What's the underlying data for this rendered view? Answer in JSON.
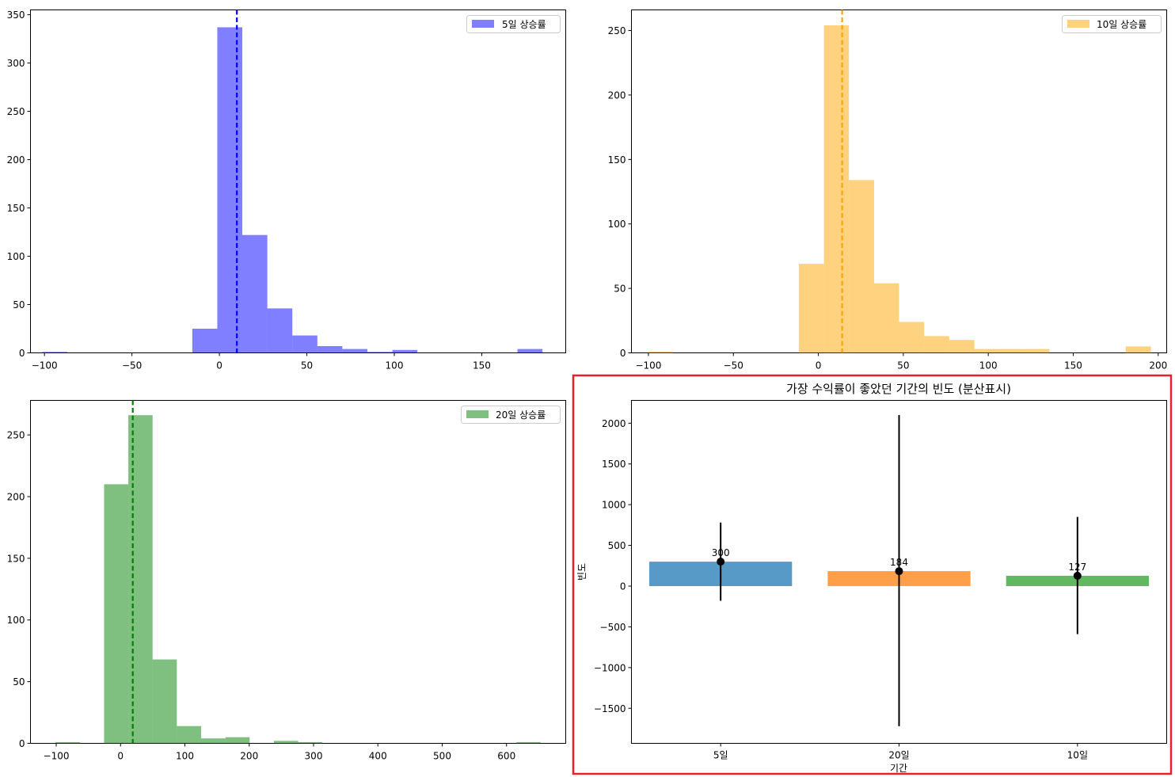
{
  "chart_data": [
    {
      "type": "bar",
      "subtype": "histogram",
      "legend": "5일 상승률",
      "legend_position": "top-right",
      "color": "#0000ff",
      "opacity": 0.5,
      "mean_line": {
        "value": 10,
        "color": "#0000ff"
      },
      "xlim": [
        -108,
        198
      ],
      "ylim": [
        0,
        355
      ],
      "xticks": [
        -100,
        -50,
        0,
        50,
        100,
        150
      ],
      "xtick_labels": [
        "−100",
        "−50",
        "0",
        "50",
        "100",
        "150"
      ],
      "yticks": [
        0,
        50,
        100,
        150,
        200,
        250,
        300,
        350
      ],
      "bins": [
        {
          "x0": -101.3,
          "x1": -87.0,
          "count": 1
        },
        {
          "x0": -15.5,
          "x1": -1.2,
          "count": 25
        },
        {
          "x0": -1.2,
          "x1": 13.1,
          "count": 337
        },
        {
          "x0": 13.1,
          "x1": 27.4,
          "count": 122
        },
        {
          "x0": 27.4,
          "x1": 41.7,
          "count": 46
        },
        {
          "x0": 41.7,
          "x1": 56.0,
          "count": 18
        },
        {
          "x0": 56.0,
          "x1": 70.3,
          "count": 7
        },
        {
          "x0": 70.3,
          "x1": 84.6,
          "count": 4
        },
        {
          "x0": 84.6,
          "x1": 98.9,
          "count": 1
        },
        {
          "x0": 98.9,
          "x1": 113.2,
          "count": 3
        },
        {
          "x0": 170.4,
          "x1": 184.7,
          "count": 4
        }
      ]
    },
    {
      "type": "bar",
      "subtype": "histogram",
      "legend": "10일 상승률",
      "legend_position": "top-right",
      "color": "#ffa500",
      "opacity": 0.5,
      "mean_line": {
        "value": 14,
        "color": "#ffa500"
      },
      "xlim": [
        -110,
        205
      ],
      "ylim": [
        0,
        266
      ],
      "xticks": [
        -100,
        -50,
        0,
        50,
        100,
        150,
        200
      ],
      "xtick_labels": [
        "−100",
        "−50",
        "0",
        "50",
        "100",
        "150",
        "200"
      ],
      "yticks": [
        0,
        50,
        100,
        150,
        200,
        250
      ],
      "bins": [
        {
          "x0": -100.0,
          "x1": -85.2,
          "count": 1
        },
        {
          "x0": -11.5,
          "x1": 3.3,
          "count": 69
        },
        {
          "x0": 3.3,
          "x1": 18.0,
          "count": 254
        },
        {
          "x0": 18.0,
          "x1": 32.8,
          "count": 134
        },
        {
          "x0": 32.8,
          "x1": 47.5,
          "count": 54
        },
        {
          "x0": 47.5,
          "x1": 62.3,
          "count": 24
        },
        {
          "x0": 62.3,
          "x1": 77.0,
          "count": 13
        },
        {
          "x0": 77.0,
          "x1": 91.8,
          "count": 10
        },
        {
          "x0": 91.8,
          "x1": 106.5,
          "count": 3
        },
        {
          "x0": 106.5,
          "x1": 121.3,
          "count": 3
        },
        {
          "x0": 121.3,
          "x1": 136.0,
          "count": 3
        },
        {
          "x0": 180.9,
          "x1": 195.7,
          "count": 5
        }
      ]
    },
    {
      "type": "bar",
      "subtype": "histogram",
      "legend": "20일 상승률",
      "legend_position": "top-right",
      "color": "#008000",
      "opacity": 0.5,
      "mean_line": {
        "value": 19,
        "color": "#008000"
      },
      "xlim": [
        -140,
        692
      ],
      "ylim": [
        0,
        278
      ],
      "xticks": [
        -100,
        0,
        100,
        200,
        300,
        400,
        500,
        600
      ],
      "xtick_labels": [
        "−100",
        "0",
        "100",
        "200",
        "300",
        "400",
        "500",
        "600"
      ],
      "yticks": [
        0,
        50,
        100,
        150,
        200,
        250
      ],
      "bins": [
        {
          "x0": -101.0,
          "x1": -63.3,
          "count": 1
        },
        {
          "x0": -25.6,
          "x1": 12.1,
          "count": 210
        },
        {
          "x0": 12.1,
          "x1": 49.8,
          "count": 266
        },
        {
          "x0": 49.8,
          "x1": 87.5,
          "count": 68
        },
        {
          "x0": 87.5,
          "x1": 125.2,
          "count": 14
        },
        {
          "x0": 125.2,
          "x1": 162.9,
          "count": 4
        },
        {
          "x0": 162.9,
          "x1": 200.6,
          "count": 5
        },
        {
          "x0": 238.3,
          "x1": 276.0,
          "count": 2
        },
        {
          "x0": 276.0,
          "x1": 313.7,
          "count": 1
        },
        {
          "x0": 615.3,
          "x1": 653.0,
          "count": 1
        }
      ]
    },
    {
      "type": "bar",
      "title": "가장 수익률이 좋았던 기간의 빈도 (분산표시)",
      "xlabel": "기간",
      "ylabel": "빈도",
      "categories": [
        "5일",
        "20일",
        "10일"
      ],
      "values": [
        300,
        184,
        127
      ],
      "value_labels": [
        "300",
        "184",
        "127"
      ],
      "error": [
        {
          "low": -180,
          "high": 780
        },
        {
          "low": -1720,
          "high": 2100
        },
        {
          "low": -590,
          "high": 850
        }
      ],
      "colors": [
        "#1f77b4",
        "#ff7f0e",
        "#2ca02c"
      ],
      "bar_opacity": 0.75,
      "ylim": [
        -1930,
        2280
      ],
      "yticks": [
        -1500,
        -1000,
        -500,
        0,
        500,
        1000,
        1500,
        2000
      ],
      "ytick_labels": [
        "−1500",
        "−1000",
        "−500",
        "0",
        "500",
        "1000",
        "1500",
        "2000"
      ],
      "highlight_color": "#e8202a"
    }
  ]
}
